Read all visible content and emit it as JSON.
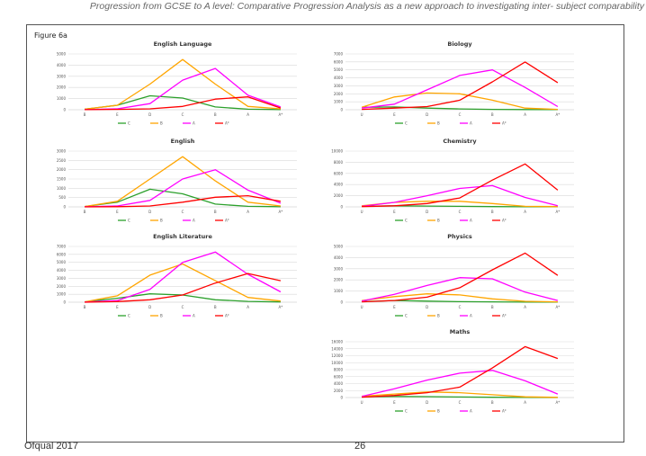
{
  "header": {
    "title": "Progression from GCSE to A level: Comparative Progression Analysis as a new approach to investigating inter- subject comparability"
  },
  "figure_label": "Figure 6a",
  "footer": {
    "org": "Ofqual 2017",
    "page": "26"
  },
  "colors": {
    "C": "#2ca02c",
    "B": "#ffa500",
    "A": "#ff00ff",
    "A*": "#ff0000",
    "grid": "#d9d9d9",
    "axis": "#bfbfbf",
    "text": "#333333"
  },
  "chart_data": [
    {
      "type": "line",
      "title": "English Language",
      "categories": [
        "B",
        "E",
        "D",
        "C",
        "B",
        "A",
        "A*"
      ],
      "ylim": [
        0,
        5000
      ],
      "yticks": [
        0,
        1000,
        2000,
        3000,
        4000,
        5000
      ],
      "series": [
        {
          "name": "C",
          "values": [
            50,
            400,
            1250,
            1050,
            250,
            50,
            20
          ]
        },
        {
          "name": "B",
          "values": [
            50,
            400,
            2300,
            4500,
            2300,
            300,
            80
          ]
        },
        {
          "name": "A",
          "values": [
            10,
            80,
            550,
            2650,
            3700,
            1300,
            250
          ]
        },
        {
          "name": "A*",
          "values": [
            5,
            30,
            80,
            300,
            950,
            1150,
            150
          ]
        }
      ]
    },
    {
      "type": "line",
      "title": "Biology",
      "categories": [
        "U",
        "E",
        "D",
        "C",
        "B",
        "A",
        "A*"
      ],
      "ylim": [
        0,
        7000
      ],
      "yticks": [
        0,
        1000,
        2000,
        3000,
        4000,
        5000,
        6000,
        7000
      ],
      "series": [
        {
          "name": "C",
          "values": [
            300,
            350,
            200,
            100,
            50,
            20,
            10
          ]
        },
        {
          "name": "B",
          "values": [
            300,
            1600,
            2100,
            2000,
            1200,
            200,
            50
          ]
        },
        {
          "name": "A",
          "values": [
            200,
            700,
            2500,
            4300,
            5000,
            2800,
            400
          ]
        },
        {
          "name": "A*",
          "values": [
            50,
            200,
            400,
            1200,
            3500,
            6000,
            3400
          ]
        }
      ]
    },
    {
      "type": "line",
      "title": "English",
      "categories": [
        "B",
        "E",
        "D",
        "C",
        "B",
        "A",
        "A*"
      ],
      "ylim": [
        0,
        3000
      ],
      "yticks": [
        0,
        500,
        1000,
        1500,
        2000,
        2500,
        3000
      ],
      "series": [
        {
          "name": "C",
          "values": [
            20,
            250,
            950,
            700,
            150,
            30,
            10
          ]
        },
        {
          "name": "B",
          "values": [
            20,
            300,
            1500,
            2700,
            1400,
            250,
            50
          ]
        },
        {
          "name": "A",
          "values": [
            5,
            50,
            350,
            1500,
            2000,
            900,
            200
          ]
        },
        {
          "name": "A*",
          "values": [
            0,
            10,
            50,
            250,
            520,
            600,
            300
          ]
        }
      ]
    },
    {
      "type": "line",
      "title": "Chemistry",
      "categories": [
        "U",
        "E",
        "D",
        "C",
        "B",
        "A",
        "A*"
      ],
      "ylim": [
        0,
        10000
      ],
      "yticks": [
        0,
        2000,
        4000,
        6000,
        8000,
        10000
      ],
      "series": [
        {
          "name": "C",
          "values": [
            100,
            200,
            150,
            100,
            50,
            20,
            10
          ]
        },
        {
          "name": "B",
          "values": [
            200,
            800,
            1000,
            1000,
            600,
            100,
            50
          ]
        },
        {
          "name": "A",
          "values": [
            100,
            800,
            2000,
            3300,
            3800,
            1700,
            200
          ]
        },
        {
          "name": "A*",
          "values": [
            50,
            200,
            600,
            1600,
            4800,
            7700,
            3000
          ]
        }
      ]
    },
    {
      "type": "line",
      "title": "English Literature",
      "categories": [
        "B",
        "E",
        "D",
        "C",
        "B",
        "A",
        "A*"
      ],
      "ylim": [
        0,
        7000
      ],
      "yticks": [
        0,
        1000,
        2000,
        3000,
        4000,
        5000,
        6000,
        7000
      ],
      "series": [
        {
          "name": "C",
          "values": [
            30,
            500,
            1050,
            900,
            300,
            100,
            30
          ]
        },
        {
          "name": "B",
          "values": [
            50,
            800,
            3400,
            4800,
            2700,
            600,
            150
          ]
        },
        {
          "name": "A",
          "values": [
            10,
            200,
            1600,
            5000,
            6300,
            3500,
            1300
          ]
        },
        {
          "name": "A*",
          "values": [
            5,
            80,
            300,
            900,
            2400,
            3600,
            2700
          ]
        }
      ]
    },
    {
      "type": "line",
      "title": "Physics",
      "categories": [
        "U",
        "E",
        "D",
        "C",
        "B",
        "A",
        "A*"
      ],
      "ylim": [
        0,
        5000
      ],
      "yticks": [
        0,
        1000,
        2000,
        3000,
        4000,
        5000
      ],
      "series": [
        {
          "name": "C",
          "values": [
            50,
            150,
            100,
            50,
            30,
            10,
            5
          ]
        },
        {
          "name": "B",
          "values": [
            150,
            500,
            750,
            650,
            300,
            80,
            30
          ]
        },
        {
          "name": "A",
          "values": [
            100,
            700,
            1500,
            2200,
            2100,
            900,
            150
          ]
        },
        {
          "name": "A*",
          "values": [
            30,
            150,
            450,
            1300,
            2900,
            4400,
            2400
          ]
        }
      ]
    },
    {
      "type": "line",
      "title": "Maths",
      "categories": [
        "U",
        "E",
        "D",
        "C",
        "B",
        "A",
        "A*"
      ],
      "ylim": [
        0,
        16000
      ],
      "yticks": [
        0,
        2000,
        4000,
        6000,
        8000,
        10000,
        12000,
        14000,
        16000
      ],
      "series": [
        {
          "name": "C",
          "values": [
            200,
            300,
            250,
            150,
            80,
            30,
            10
          ]
        },
        {
          "name": "B",
          "values": [
            400,
            1000,
            1600,
            1400,
            800,
            200,
            50
          ]
        },
        {
          "name": "A",
          "values": [
            300,
            2500,
            5000,
            7000,
            7800,
            4800,
            1000
          ]
        },
        {
          "name": "A*",
          "values": [
            100,
            600,
            1400,
            3000,
            8500,
            14600,
            11200
          ]
        }
      ]
    }
  ]
}
